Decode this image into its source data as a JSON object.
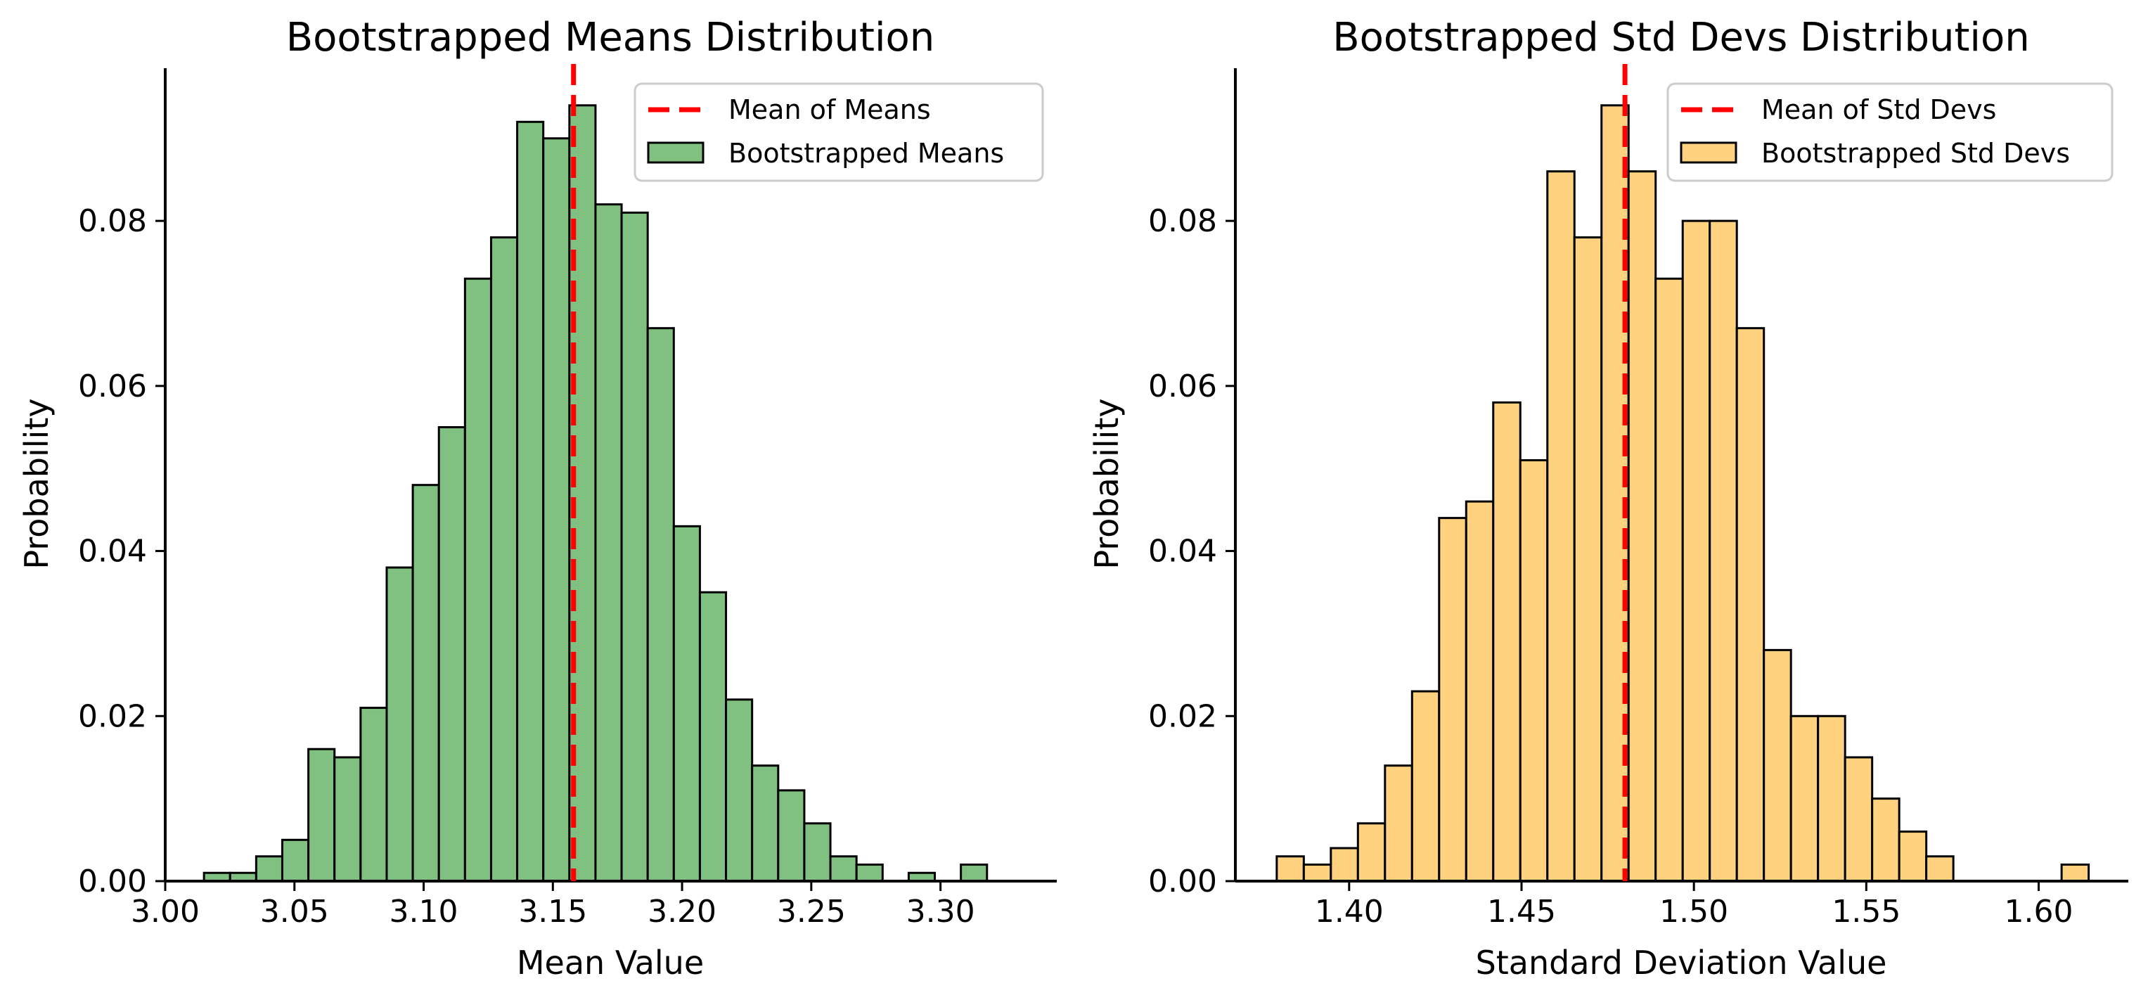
{
  "chart_data": [
    {
      "type": "bar",
      "title": "Bootstrapped Means Distribution",
      "xlabel": "Mean Value",
      "ylabel": "Probability",
      "xlim": [
        3.0,
        3.345
      ],
      "ylim": [
        0,
        0.0985
      ],
      "x_ticks": [
        3.0,
        3.05,
        3.1,
        3.15,
        3.2,
        3.25,
        3.3
      ],
      "x_tick_labels": [
        "3.00",
        "3.05",
        "3.10",
        "3.15",
        "3.20",
        "3.25",
        "3.30"
      ],
      "y_ticks": [
        0,
        0.02,
        0.04,
        0.06,
        0.08
      ],
      "y_tick_labels": [
        "0.00",
        "0.02",
        "0.04",
        "0.06",
        "0.08"
      ],
      "bin_start": 3.015,
      "bin_width": 0.0101,
      "values": [
        0.001,
        0.001,
        0.003,
        0.005,
        0.016,
        0.015,
        0.021,
        0.038,
        0.048,
        0.055,
        0.073,
        0.078,
        0.092,
        0.09,
        0.094,
        0.082,
        0.081,
        0.067,
        0.043,
        0.035,
        0.022,
        0.014,
        0.011,
        0.007,
        0.003,
        0.002,
        0,
        0.001,
        0,
        0.002
      ],
      "bar_color": "#80c080",
      "mean_line": 3.158,
      "mean_line_color": "#ff0000",
      "legend": {
        "position": "top-right",
        "items": [
          "Mean of Means",
          "Bootstrapped Means"
        ]
      },
      "grid": false
    },
    {
      "type": "bar",
      "title": "Bootstrapped Std Devs Distribution",
      "xlabel": "Standard Deviation Value",
      "ylabel": "Probability",
      "xlim": [
        1.367,
        1.626
      ],
      "ylim": [
        0,
        0.0985
      ],
      "x_ticks": [
        1.4,
        1.45,
        1.5,
        1.55,
        1.6
      ],
      "x_tick_labels": [
        "1.40",
        "1.45",
        "1.50",
        "1.55",
        "1.60"
      ],
      "y_ticks": [
        0,
        0.02,
        0.04,
        0.06,
        0.08
      ],
      "y_tick_labels": [
        "0.00",
        "0.02",
        "0.04",
        "0.06",
        "0.08"
      ],
      "bin_start": 1.379,
      "bin_width": 0.00785,
      "values": [
        0.003,
        0.002,
        0.004,
        0.007,
        0.014,
        0.023,
        0.044,
        0.046,
        0.058,
        0.051,
        0.086,
        0.078,
        0.094,
        0.086,
        0.073,
        0.08,
        0.08,
        0.067,
        0.028,
        0.02,
        0.02,
        0.015,
        0.01,
        0.006,
        0.003,
        0,
        0,
        0,
        0,
        0.002
      ],
      "bar_color": "#fed27f",
      "mean_line": 1.48,
      "mean_line_color": "#ff0000",
      "legend": {
        "position": "top-right",
        "items": [
          "Mean of Std Devs",
          "Bootstrapped Std Devs"
        ]
      },
      "grid": false
    }
  ]
}
